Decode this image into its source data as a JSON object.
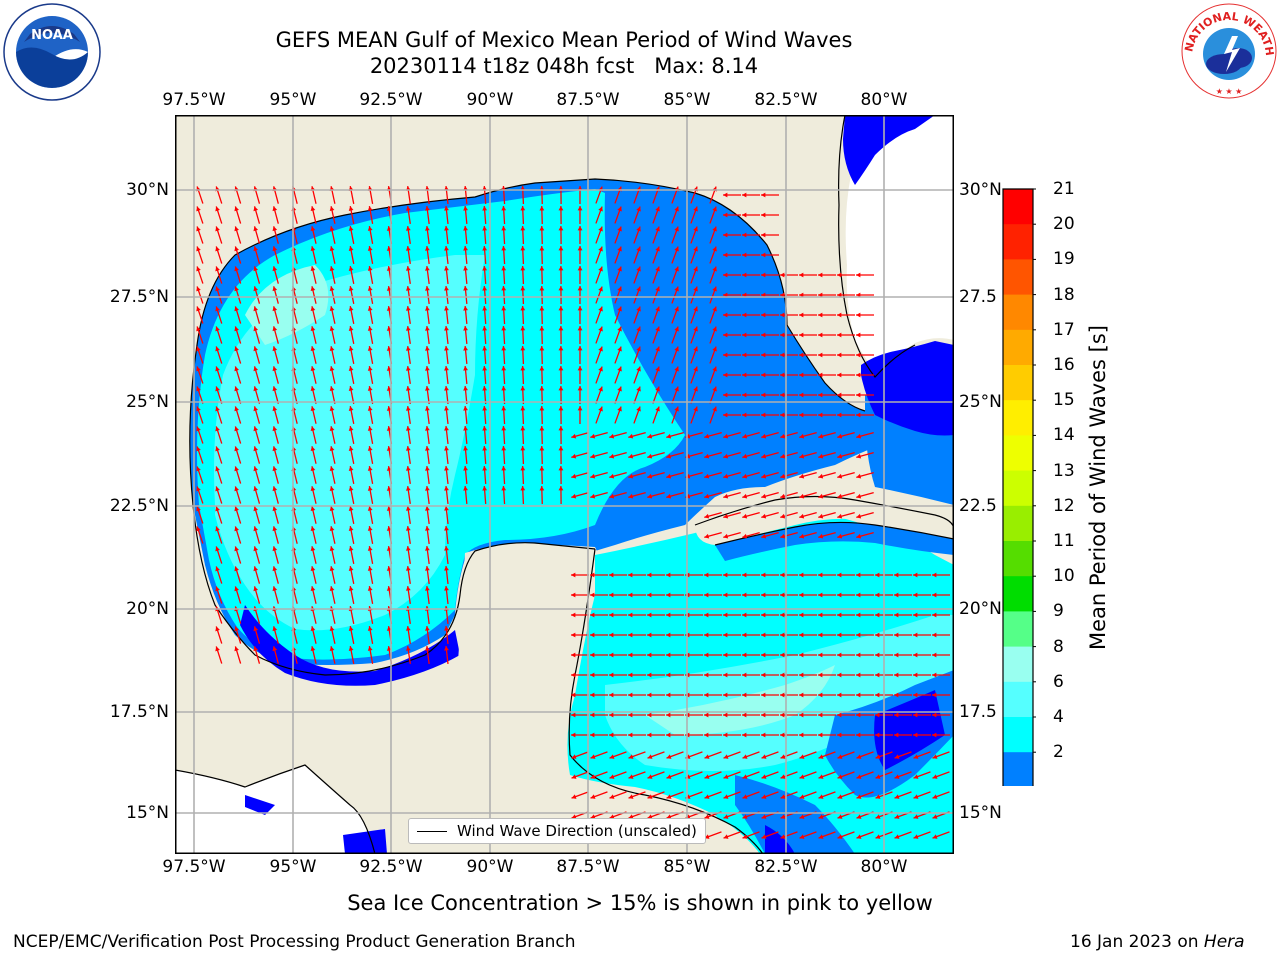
{
  "header": {
    "title_line1": "GEFS MEAN Gulf of Mexico Mean Period of Wind Waves",
    "title_line2": "20230114 t18z 048h fcst   Max: 8.14"
  },
  "logos": {
    "noaa": {
      "icon": "noaa-logo",
      "text": "NOAA",
      "ring_text": "NATIONAL OCEANIC AND ATMOSPHERIC ADMINISTRATION · U.S. DEPARTMENT OF COMMERCE"
    },
    "nws": {
      "icon": "nws-logo",
      "ring_text": "NATIONAL WEATHER SERVICE"
    }
  },
  "axes": {
    "lon_ticks": [
      "97.5°W",
      "95°W",
      "92.5°W",
      "90°W",
      "87.5°W",
      "85°W",
      "82.5°W",
      "80°W"
    ],
    "lat_ticks_left": [
      "30°N",
      "27.5°N",
      "25°N",
      "22.5°N",
      "20°N",
      "17.5°N",
      "15°N"
    ],
    "lat_ticks_right": [
      "30°N",
      "27.5",
      "25°N",
      "22.5",
      "20°N",
      "17.5",
      "15°N"
    ]
  },
  "legend": {
    "label": "Wind Wave Direction (unscaled)"
  },
  "colorbar": {
    "title": "Mean Period of Wind Waves [s]",
    "labels": [
      "21",
      "20",
      "19",
      "18",
      "17",
      "16",
      "15",
      "14",
      "13",
      "12",
      "11",
      "10",
      "9",
      "8",
      "6",
      "4",
      "2"
    ],
    "colors": [
      "#ff0000",
      "#ff2200",
      "#ff5500",
      "#ff8800",
      "#ffaa00",
      "#ffcc00",
      "#ffee00",
      "#eeff00",
      "#ccff00",
      "#99ee00",
      "#55dd00",
      "#00dd00",
      "#55ff88",
      "#99fff0",
      "#55ffff",
      "#00ffff",
      "#0080ff"
    ],
    "extend_color": "#0000ff"
  },
  "map": {
    "land_color": "#efecdc",
    "ocean_colors": {
      "lt2": "#0000ff",
      "2to4": "#0080ff",
      "4to6": "#00ffff",
      "6to8": "#55ffff",
      "8to9": "#99fff0"
    },
    "arrow_color": "#ff0000",
    "grid_color": "#b0b0b0"
  },
  "footer": {
    "sea_ice_note": "Sea Ice Concentration > 15% is shown in pink to yellow",
    "credit": "NCEP/EMC/Verification Post Processing Product Generation Branch",
    "date": "16 Jan 2023 on ",
    "machine": "Hera"
  }
}
